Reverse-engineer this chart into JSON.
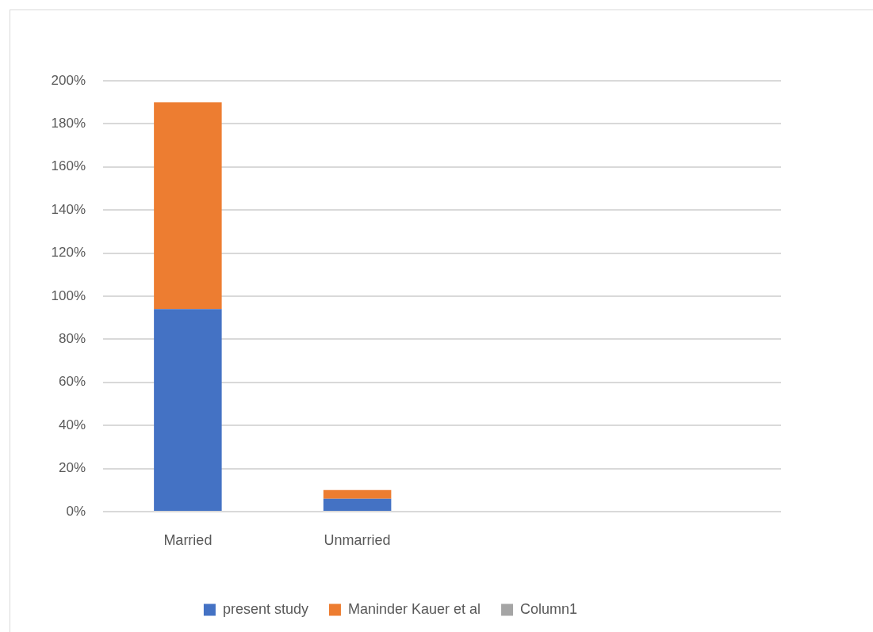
{
  "chart_data": {
    "type": "bar",
    "categories": [
      "Married",
      "Unmarried",
      null,
      null
    ],
    "series": [
      {
        "name": "present study",
        "color": "#4472c4",
        "values": [
          94,
          6,
          null,
          null
        ]
      },
      {
        "name": "Maninder Kauer et al",
        "color": "#ed7d31",
        "values": [
          96,
          4,
          null,
          null
        ]
      },
      {
        "name": "Column1",
        "color": "#a5a5a5",
        "values": [
          null,
          null,
          null,
          null
        ]
      }
    ],
    "stacked": true,
    "ylim": [
      0,
      200
    ],
    "yticks": [
      {
        "value": 0,
        "label": "0%"
      },
      {
        "value": 20,
        "label": "20%"
      },
      {
        "value": 40,
        "label": "40%"
      },
      {
        "value": 60,
        "label": "60%"
      },
      {
        "value": 80,
        "label": "80%"
      },
      {
        "value": 100,
        "label": "100%"
      },
      {
        "value": 120,
        "label": "120%"
      },
      {
        "value": 140,
        "label": "140%"
      },
      {
        "value": 160,
        "label": "160%"
      },
      {
        "value": 180,
        "label": "180%"
      },
      {
        "value": 200,
        "label": "200%"
      }
    ],
    "grid": "y",
    "legend": "bottom"
  }
}
